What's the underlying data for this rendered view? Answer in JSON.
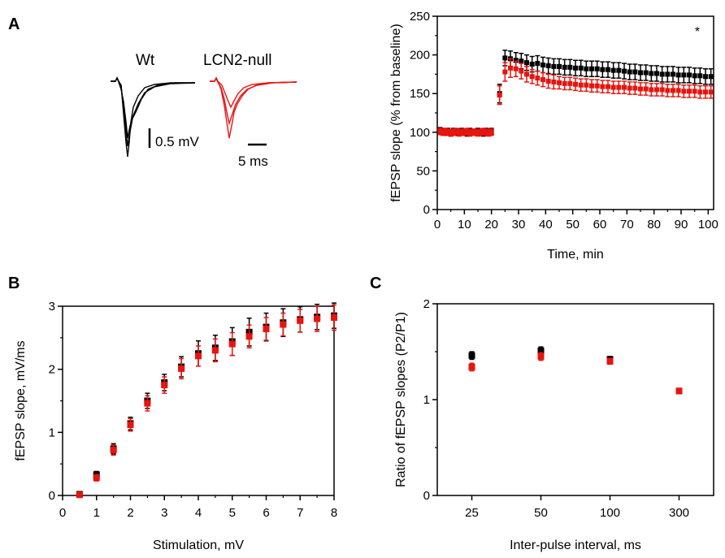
{
  "colors": {
    "wt": "#000000",
    "null": "#e8140f"
  },
  "panels": {
    "A": "A",
    "B": "B",
    "C": "C"
  },
  "traces": {
    "wt_label": "Wt",
    "null_label": "LCN2-null",
    "scale_voltage": "0.5 mV",
    "scale_time": "5 ms"
  },
  "chart_data": [
    {
      "id": "ltp",
      "type": "scatter",
      "ylabel": "fEPSP slope (% from baseline)",
      "xlabel": "Time, min",
      "xlim": [
        0,
        102
      ],
      "ylim": [
        0,
        250
      ],
      "xticks": [
        0,
        10,
        20,
        30,
        40,
        50,
        60,
        70,
        80,
        90,
        100
      ],
      "yticks": [
        0,
        50,
        100,
        150,
        200,
        250
      ],
      "annotation": "*",
      "annotation_x": 96,
      "annotation_y": 225,
      "series": [
        {
          "name": "Wt",
          "color": "#000000",
          "x": [
            1,
            2,
            3,
            4,
            5,
            6,
            7,
            8,
            9,
            10,
            11,
            12,
            13,
            14,
            15,
            16,
            17,
            18,
            19,
            20,
            23,
            25,
            27,
            29,
            31,
            33,
            35,
            37,
            39,
            41,
            43,
            45,
            47,
            49,
            51,
            53,
            55,
            57,
            59,
            61,
            63,
            65,
            67,
            69,
            71,
            73,
            75,
            77,
            79,
            81,
            83,
            85,
            87,
            89,
            91,
            93,
            95,
            97,
            99,
            101
          ],
          "y": [
            102,
            101,
            100,
            101,
            99,
            101,
            100,
            100,
            101,
            100,
            99,
            101,
            100,
            100,
            101,
            100,
            99,
            101,
            100,
            101,
            150,
            196,
            195,
            193,
            192,
            190,
            188,
            189,
            187,
            186,
            185,
            185,
            184,
            184,
            183,
            183,
            182,
            182,
            182,
            181,
            181,
            180,
            180,
            179,
            178,
            178,
            177,
            177,
            176,
            176,
            175,
            175,
            175,
            174,
            174,
            174,
            173,
            173,
            172,
            172
          ],
          "err": [
            4,
            4,
            4,
            4,
            4,
            4,
            4,
            4,
            4,
            4,
            4,
            4,
            4,
            4,
            4,
            4,
            4,
            4,
            4,
            4,
            12,
            10,
            10,
            10,
            10,
            10,
            10,
            10,
            10,
            10,
            10,
            10,
            10,
            10,
            10,
            10,
            10,
            10,
            10,
            10,
            10,
            10,
            10,
            10,
            10,
            10,
            10,
            10,
            10,
            10,
            10,
            10,
            10,
            10,
            10,
            10,
            10,
            10,
            10,
            10
          ]
        },
        {
          "name": "LCN2-null",
          "color": "#e8140f",
          "x": [
            1,
            2,
            3,
            4,
            5,
            6,
            7,
            8,
            9,
            10,
            11,
            12,
            13,
            14,
            15,
            16,
            17,
            18,
            19,
            20,
            23,
            25,
            27,
            29,
            31,
            33,
            35,
            37,
            39,
            41,
            43,
            45,
            47,
            49,
            51,
            53,
            55,
            57,
            59,
            61,
            63,
            65,
            67,
            69,
            71,
            73,
            75,
            77,
            79,
            81,
            83,
            85,
            87,
            89,
            91,
            93,
            95,
            97,
            99,
            101
          ],
          "y": [
            101,
            100,
            101,
            100,
            99,
            100,
            101,
            99,
            100,
            100,
            101,
            99,
            100,
            100,
            99,
            100,
            101,
            100,
            99,
            100,
            148,
            178,
            183,
            182,
            179,
            175,
            172,
            170,
            168,
            166,
            165,
            164,
            163,
            163,
            162,
            161,
            161,
            160,
            160,
            159,
            159,
            158,
            158,
            158,
            157,
            157,
            156,
            156,
            155,
            155,
            155,
            154,
            154,
            154,
            153,
            153,
            153,
            152,
            152,
            152
          ],
          "err": [
            4,
            4,
            4,
            4,
            4,
            4,
            4,
            4,
            4,
            4,
            4,
            4,
            4,
            4,
            4,
            4,
            4,
            4,
            4,
            4,
            12,
            12,
            12,
            10,
            10,
            10,
            9,
            9,
            9,
            9,
            9,
            8,
            8,
            8,
            8,
            8,
            8,
            8,
            8,
            8,
            8,
            8,
            8,
            8,
            8,
            8,
            8,
            8,
            8,
            8,
            8,
            8,
            8,
            8,
            8,
            8,
            8,
            8,
            8,
            8
          ]
        }
      ]
    },
    {
      "id": "io",
      "type": "scatter",
      "ylabel": "fEPSP slope, mV/ms",
      "xlabel": "Stimulation, mV",
      "xlim": [
        0,
        8
      ],
      "ylim": [
        0,
        3
      ],
      "xticks": [
        0,
        1,
        2,
        3,
        4,
        5,
        6,
        7,
        8
      ],
      "yticks": [
        0,
        1,
        2,
        3
      ],
      "series": [
        {
          "name": "Wt",
          "color": "#000000",
          "x": [
            0.5,
            1,
            1.5,
            2,
            2.5,
            3,
            3.5,
            4,
            4.5,
            5,
            5.5,
            6,
            6.5,
            7,
            7.5,
            8
          ],
          "y": [
            0.02,
            0.33,
            0.74,
            1.14,
            1.5,
            1.79,
            2.04,
            2.25,
            2.34,
            2.44,
            2.59,
            2.67,
            2.74,
            2.79,
            2.83,
            2.85
          ],
          "err": [
            0.02,
            0.05,
            0.08,
            0.1,
            0.12,
            0.13,
            0.16,
            0.2,
            0.2,
            0.22,
            0.22,
            0.22,
            0.22,
            0.2,
            0.2,
            0.2
          ]
        },
        {
          "name": "LCN2-null",
          "color": "#e8140f",
          "x": [
            0.5,
            1,
            1.5,
            2,
            2.5,
            3,
            3.5,
            4,
            4.5,
            5,
            5.5,
            6,
            6.5,
            7,
            7.5,
            8
          ],
          "y": [
            0.01,
            0.28,
            0.72,
            1.12,
            1.46,
            1.75,
            2.01,
            2.21,
            2.3,
            2.4,
            2.52,
            2.64,
            2.71,
            2.77,
            2.8,
            2.82
          ],
          "err": [
            0.02,
            0.05,
            0.08,
            0.1,
            0.12,
            0.13,
            0.16,
            0.16,
            0.18,
            0.18,
            0.18,
            0.18,
            0.18,
            0.18,
            0.2,
            0.2
          ]
        }
      ]
    },
    {
      "id": "ppf",
      "type": "scatter",
      "ylabel": "Ratio of fEPSP slopes (P2/P1)",
      "xlabel": "Inter-pulse interval, ms",
      "categories": [
        "25",
        "50",
        "100",
        "300"
      ],
      "ylim": [
        0,
        2
      ],
      "yticks": [
        0,
        1,
        2
      ],
      "series": [
        {
          "name": "Wt",
          "color": "#000000",
          "values": [
            1.46,
            1.51,
            1.42,
            1.09
          ],
          "err": [
            0.04,
            0.04,
            0.03,
            0.02
          ]
        },
        {
          "name": "LCN2-null",
          "color": "#e8140f",
          "values": [
            1.34,
            1.45,
            1.4,
            1.09
          ],
          "err": [
            0.04,
            0.04,
            0.03,
            0.02
          ]
        }
      ]
    }
  ]
}
